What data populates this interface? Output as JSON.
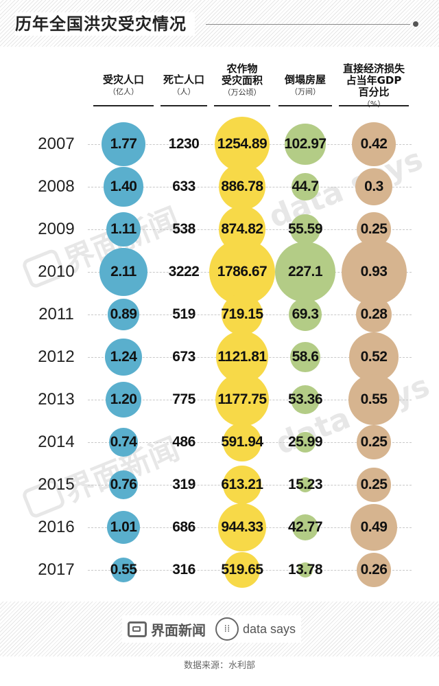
{
  "title": "历年全国洪灾受灾情况",
  "columns": [
    {
      "name": "受灾人口",
      "unit": "（亿人）"
    },
    {
      "name": "死亡人口",
      "unit": "（人）"
    },
    {
      "name": "农作物\n受灾面积",
      "unit": "（万公顷）"
    },
    {
      "name": "倒塌房屋",
      "unit": "（万间）"
    },
    {
      "name": "直接经济损失\n占当年GDP\n百分比",
      "unit": "（%）"
    }
  ],
  "colors": {
    "affected_population": "#5aafcd",
    "deaths": "#ffffff",
    "crop_area": "#f7d948",
    "collapsed_houses": "#b3cc86",
    "gdp_loss": "#d6b48f"
  },
  "chart_data": {
    "type": "table",
    "categories": [
      "2007",
      "2008",
      "2009",
      "2010",
      "2011",
      "2012",
      "2013",
      "2014",
      "2015",
      "2016",
      "2017"
    ],
    "series": [
      {
        "name": "受灾人口（亿人）",
        "labels": [
          "1.77",
          "1.40",
          "1.11",
          "2.11",
          "0.89",
          "1.24",
          "1.20",
          "0.74",
          "0.76",
          "1.01",
          "0.55"
        ],
        "values": [
          1.77,
          1.4,
          1.11,
          2.11,
          0.89,
          1.24,
          1.2,
          0.74,
          0.76,
          1.01,
          0.55
        ]
      },
      {
        "name": "死亡人口（人）",
        "labels": [
          "1230",
          "633",
          "538",
          "3222",
          "519",
          "673",
          "775",
          "486",
          "319",
          "686",
          "316"
        ],
        "values": [
          1230,
          633,
          538,
          3222,
          519,
          673,
          775,
          486,
          319,
          686,
          316
        ]
      },
      {
        "name": "农作物受灾面积（万公顷）",
        "labels": [
          "1254.89",
          "886.78",
          "874.82",
          "1786.67",
          "719.15",
          "1121.81",
          "1177.75",
          "591.94",
          "613.21",
          "944.33",
          "519.65"
        ],
        "values": [
          1254.89,
          886.78,
          874.82,
          1786.67,
          719.15,
          1121.81,
          1177.75,
          591.94,
          613.21,
          944.33,
          519.65
        ]
      },
      {
        "name": "倒塌房屋（万间）",
        "labels": [
          "102.97",
          "44.7",
          "55.59",
          "227.1",
          "69.3",
          "58.6",
          "53.36",
          "25.99",
          "15.23",
          "42.77",
          "13.78"
        ],
        "values": [
          102.97,
          44.7,
          55.59,
          227.1,
          69.3,
          58.6,
          53.36,
          25.99,
          15.23,
          42.77,
          13.78
        ]
      },
      {
        "name": "直接经济损失占当年GDP百分比（%）",
        "labels": [
          "0.42",
          "0.3",
          "0.25",
          "0.93",
          "0.28",
          "0.52",
          "0.55",
          "0.25",
          "0.25",
          "0.49",
          "0.26"
        ],
        "values": [
          0.42,
          0.3,
          0.25,
          0.93,
          0.28,
          0.52,
          0.55,
          0.25,
          0.25,
          0.49,
          0.26
        ]
      }
    ]
  },
  "watermark": "界面新闻",
  "watermark_secondary": "data says",
  "footer": {
    "brand": "界面新闻",
    "brand_secondary": "data says",
    "source": "数据来源：水利部"
  }
}
